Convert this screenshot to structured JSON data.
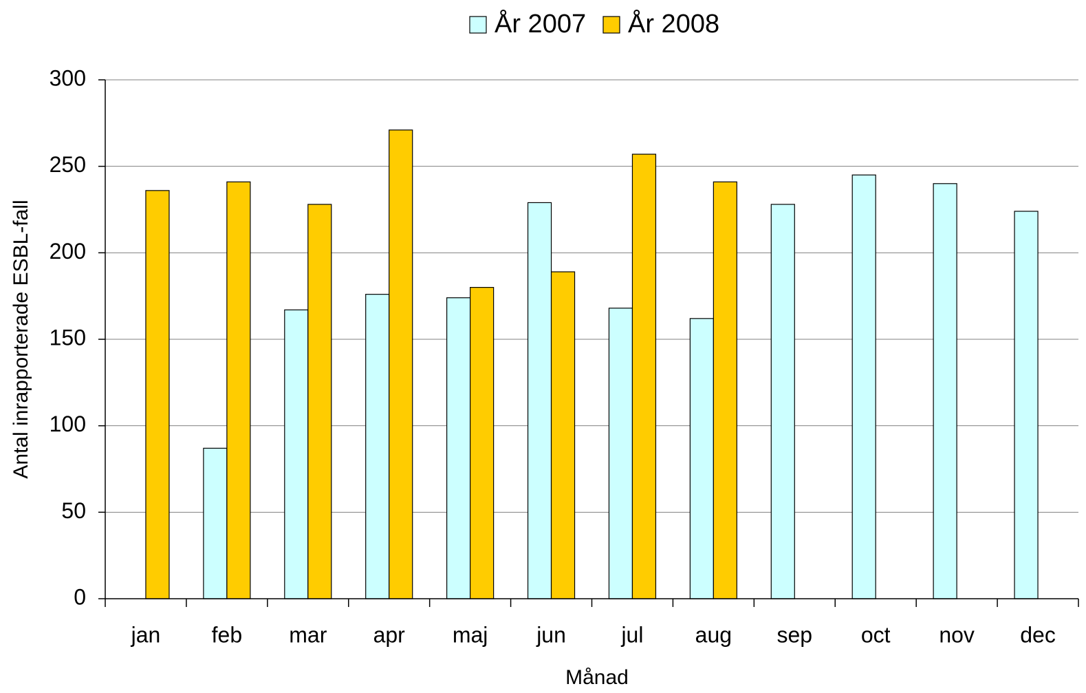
{
  "chart_data": {
    "type": "bar",
    "categories": [
      "jan",
      "feb",
      "mar",
      "apr",
      "maj",
      "jun",
      "jul",
      "aug",
      "sep",
      "oct",
      "nov",
      "dec"
    ],
    "series": [
      {
        "name": "År 2007",
        "color": "#ccffff",
        "values": [
          null,
          87,
          167,
          176,
          174,
          229,
          168,
          162,
          228,
          245,
          240,
          224
        ]
      },
      {
        "name": "År 2008",
        "color": "#ffcc00",
        "values": [
          236,
          241,
          228,
          271,
          180,
          189,
          257,
          241,
          null,
          null,
          null,
          null
        ]
      }
    ],
    "x_label": "Månad",
    "y_label": "Antal inrapporterade ESBL-fall",
    "ylim": [
      0,
      300
    ],
    "yticks": [
      0,
      50,
      100,
      150,
      200,
      250,
      300
    ],
    "grid": true,
    "legend": "top"
  }
}
